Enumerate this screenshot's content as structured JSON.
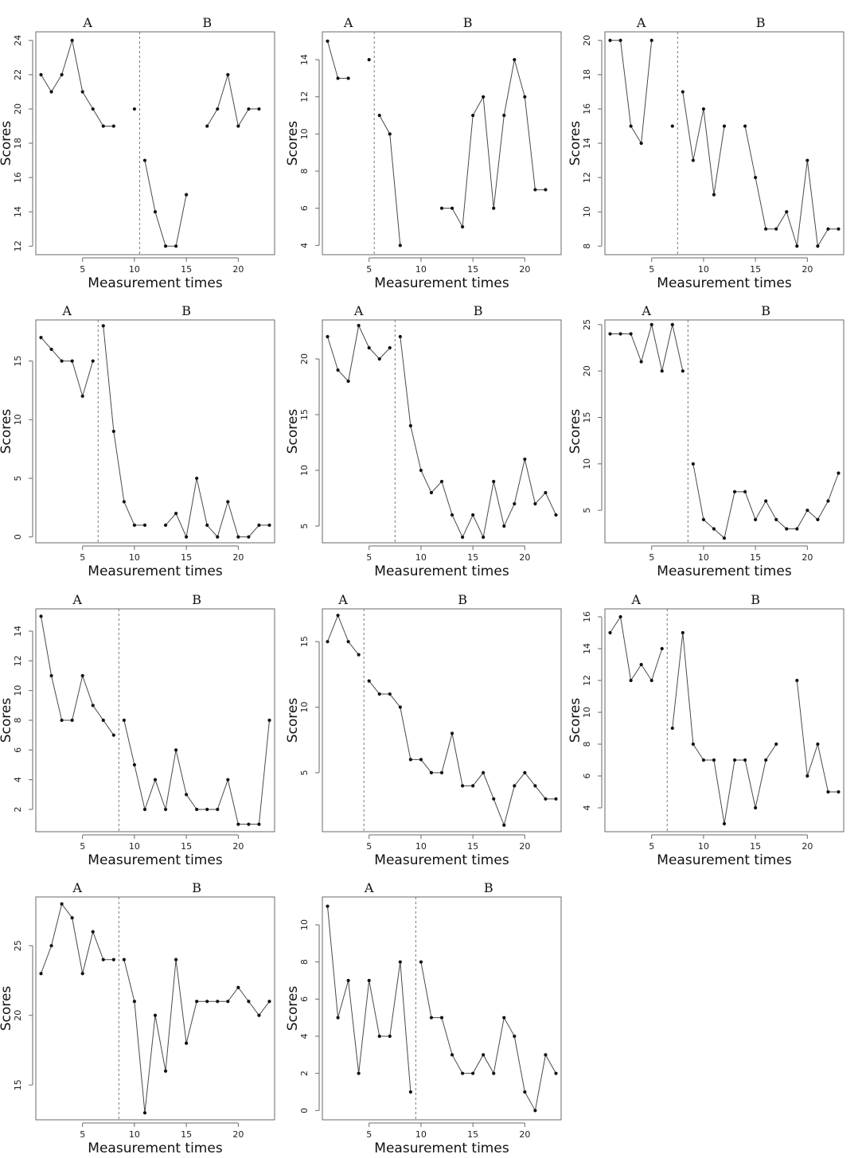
{
  "chart_data": [
    {
      "type": "line",
      "x_ticks": [
        5,
        10,
        15,
        20
      ],
      "y_ticks": [
        12,
        14,
        16,
        18,
        20,
        22,
        24
      ],
      "xlim": [
        0.5,
        23.5
      ],
      "ylim": [
        11.5,
        24.5
      ],
      "xlabel": "Measurement times",
      "ylabel": "Scores",
      "phase_labels": [
        "A",
        "B"
      ],
      "phase_change_after": 10.5,
      "values": [
        22,
        21,
        22,
        24,
        21,
        20,
        19,
        19,
        null,
        20,
        17,
        14,
        12,
        12,
        15,
        null,
        19,
        20,
        22,
        19,
        20,
        20
      ]
    },
    {
      "type": "line",
      "x_ticks": [
        5,
        10,
        15,
        20
      ],
      "y_ticks": [
        4,
        6,
        8,
        10,
        12,
        14
      ],
      "xlim": [
        0.5,
        23.5
      ],
      "ylim": [
        3.5,
        15.5
      ],
      "xlabel": "Measurement times",
      "ylabel": "Scores",
      "phase_labels": [
        "A",
        "B"
      ],
      "phase_change_after": 5.5,
      "values": [
        15,
        13,
        13,
        null,
        14,
        11,
        10,
        4,
        null,
        null,
        null,
        6,
        6,
        5,
        11,
        12,
        6,
        11,
        14,
        12,
        7,
        7
      ]
    },
    {
      "type": "line",
      "x_ticks": [
        5,
        10,
        15,
        20
      ],
      "y_ticks": [
        8,
        10,
        12,
        14,
        16,
        18,
        20
      ],
      "xlim": [
        0.5,
        23.5
      ],
      "ylim": [
        7.5,
        20.5
      ],
      "xlabel": "Measurement times",
      "ylabel": "Scores",
      "phase_labels": [
        "A",
        "B"
      ],
      "phase_change_after": 7.5,
      "values": [
        20,
        20,
        15,
        14,
        20,
        null,
        15,
        17,
        13,
        16,
        11,
        15,
        null,
        15,
        12,
        9,
        9,
        10,
        8,
        13,
        8,
        9,
        9
      ]
    },
    {
      "type": "line",
      "x_ticks": [
        5,
        10,
        15,
        20
      ],
      "y_ticks": [
        0,
        5,
        10,
        15
      ],
      "xlim": [
        0.5,
        23.5
      ],
      "ylim": [
        -0.5,
        18.5
      ],
      "xlabel": "Measurement times",
      "ylabel": "Scores",
      "phase_labels": [
        "A",
        "B"
      ],
      "phase_change_after": 6.5,
      "values": [
        17,
        16,
        15,
        15,
        12,
        15,
        18,
        9,
        3,
        1,
        1,
        null,
        1,
        2,
        0,
        5,
        1,
        0,
        3,
        0,
        0,
        1,
        1
      ]
    },
    {
      "type": "line",
      "x_ticks": [
        5,
        10,
        15,
        20
      ],
      "y_ticks": [
        5,
        10,
        15,
        20
      ],
      "xlim": [
        0.5,
        23.5
      ],
      "ylim": [
        3.5,
        23.5
      ],
      "xlabel": "Measurement times",
      "ylabel": "Scores",
      "phase_labels": [
        "A",
        "B"
      ],
      "phase_change_after": 7.5,
      "values": [
        22,
        19,
        18,
        23,
        21,
        20,
        21,
        22,
        14,
        10,
        8,
        9,
        6,
        4,
        6,
        4,
        9,
        5,
        7,
        11,
        7,
        8,
        6
      ]
    },
    {
      "type": "line",
      "x_ticks": [
        5,
        10,
        15,
        20
      ],
      "y_ticks": [
        5,
        10,
        15,
        20,
        25
      ],
      "xlim": [
        0.5,
        23.5
      ],
      "ylim": [
        1.5,
        25.5
      ],
      "xlabel": "Measurement times",
      "ylabel": "Scores",
      "phase_labels": [
        "A",
        "B"
      ],
      "phase_change_after": 8.5,
      "values": [
        24,
        24,
        24,
        21,
        25,
        20,
        25,
        20,
        10,
        4,
        3,
        2,
        7,
        7,
        4,
        6,
        4,
        3,
        3,
        5,
        4,
        6,
        9
      ]
    },
    {
      "type": "line",
      "x_ticks": [
        5,
        10,
        15,
        20
      ],
      "y_ticks": [
        2,
        4,
        6,
        8,
        10,
        12,
        14
      ],
      "xlim": [
        0.5,
        23.5
      ],
      "ylim": [
        0.5,
        15.5
      ],
      "xlabel": "Measurement times",
      "ylabel": "Scores",
      "phase_labels": [
        "A",
        "B"
      ],
      "phase_change_after": 8.5,
      "values": [
        15,
        11,
        8,
        8,
        11,
        9,
        8,
        7,
        8,
        5,
        2,
        4,
        2,
        6,
        3,
        2,
        2,
        2,
        4,
        1,
        1,
        1,
        8
      ]
    },
    {
      "type": "line",
      "x_ticks": [
        5,
        10,
        15,
        20
      ],
      "y_ticks": [
        5,
        10,
        15
      ],
      "xlim": [
        0.5,
        23.5
      ],
      "ylim": [
        0.5,
        17.5
      ],
      "xlabel": "Measurement times",
      "ylabel": "Scores",
      "phase_labels": [
        "A",
        "B"
      ],
      "phase_change_after": 4.5,
      "values": [
        15,
        17,
        15,
        14,
        12,
        11,
        11,
        10,
        6,
        6,
        5,
        5,
        8,
        4,
        4,
        5,
        3,
        1,
        4,
        5,
        4,
        3,
        3
      ]
    },
    {
      "type": "line",
      "x_ticks": [
        5,
        10,
        15,
        20
      ],
      "y_ticks": [
        4,
        6,
        8,
        10,
        12,
        14,
        16
      ],
      "xlim": [
        0.5,
        23.5
      ],
      "ylim": [
        2.5,
        16.5
      ],
      "xlabel": "Measurement times",
      "ylabel": "Scores",
      "phase_labels": [
        "A",
        "B"
      ],
      "phase_change_after": 6.5,
      "values": [
        15,
        16,
        12,
        13,
        12,
        14,
        9,
        15,
        8,
        7,
        7,
        3,
        7,
        7,
        4,
        7,
        8,
        null,
        12,
        6,
        8,
        5,
        5
      ]
    },
    {
      "type": "line",
      "x_ticks": [
        5,
        10,
        15,
        20
      ],
      "y_ticks": [
        15,
        20,
        25
      ],
      "xlim": [
        0.5,
        23.5
      ],
      "ylim": [
        12.5,
        28.5
      ],
      "xlabel": "Measurement times",
      "ylabel": "Scores",
      "phase_labels": [
        "A",
        "B"
      ],
      "phase_change_after": 8.5,
      "values": [
        23,
        25,
        28,
        27,
        23,
        26,
        24,
        24,
        24,
        21,
        13,
        20,
        16,
        24,
        18,
        21,
        21,
        21,
        21,
        22,
        21,
        20,
        21
      ]
    },
    {
      "type": "line",
      "x_ticks": [
        5,
        10,
        15,
        20
      ],
      "y_ticks": [
        0,
        2,
        4,
        6,
        8,
        10
      ],
      "xlim": [
        0.5,
        23.5
      ],
      "ylim": [
        -0.5,
        11.5
      ],
      "xlabel": "Measurement times",
      "ylabel": "Scores",
      "phase_labels": [
        "A",
        "B"
      ],
      "phase_change_after": 9.5,
      "values": [
        11,
        5,
        7,
        2,
        7,
        4,
        4,
        8,
        1,
        8,
        5,
        5,
        3,
        2,
        2,
        3,
        2,
        5,
        4,
        1,
        0,
        3,
        2
      ]
    }
  ]
}
